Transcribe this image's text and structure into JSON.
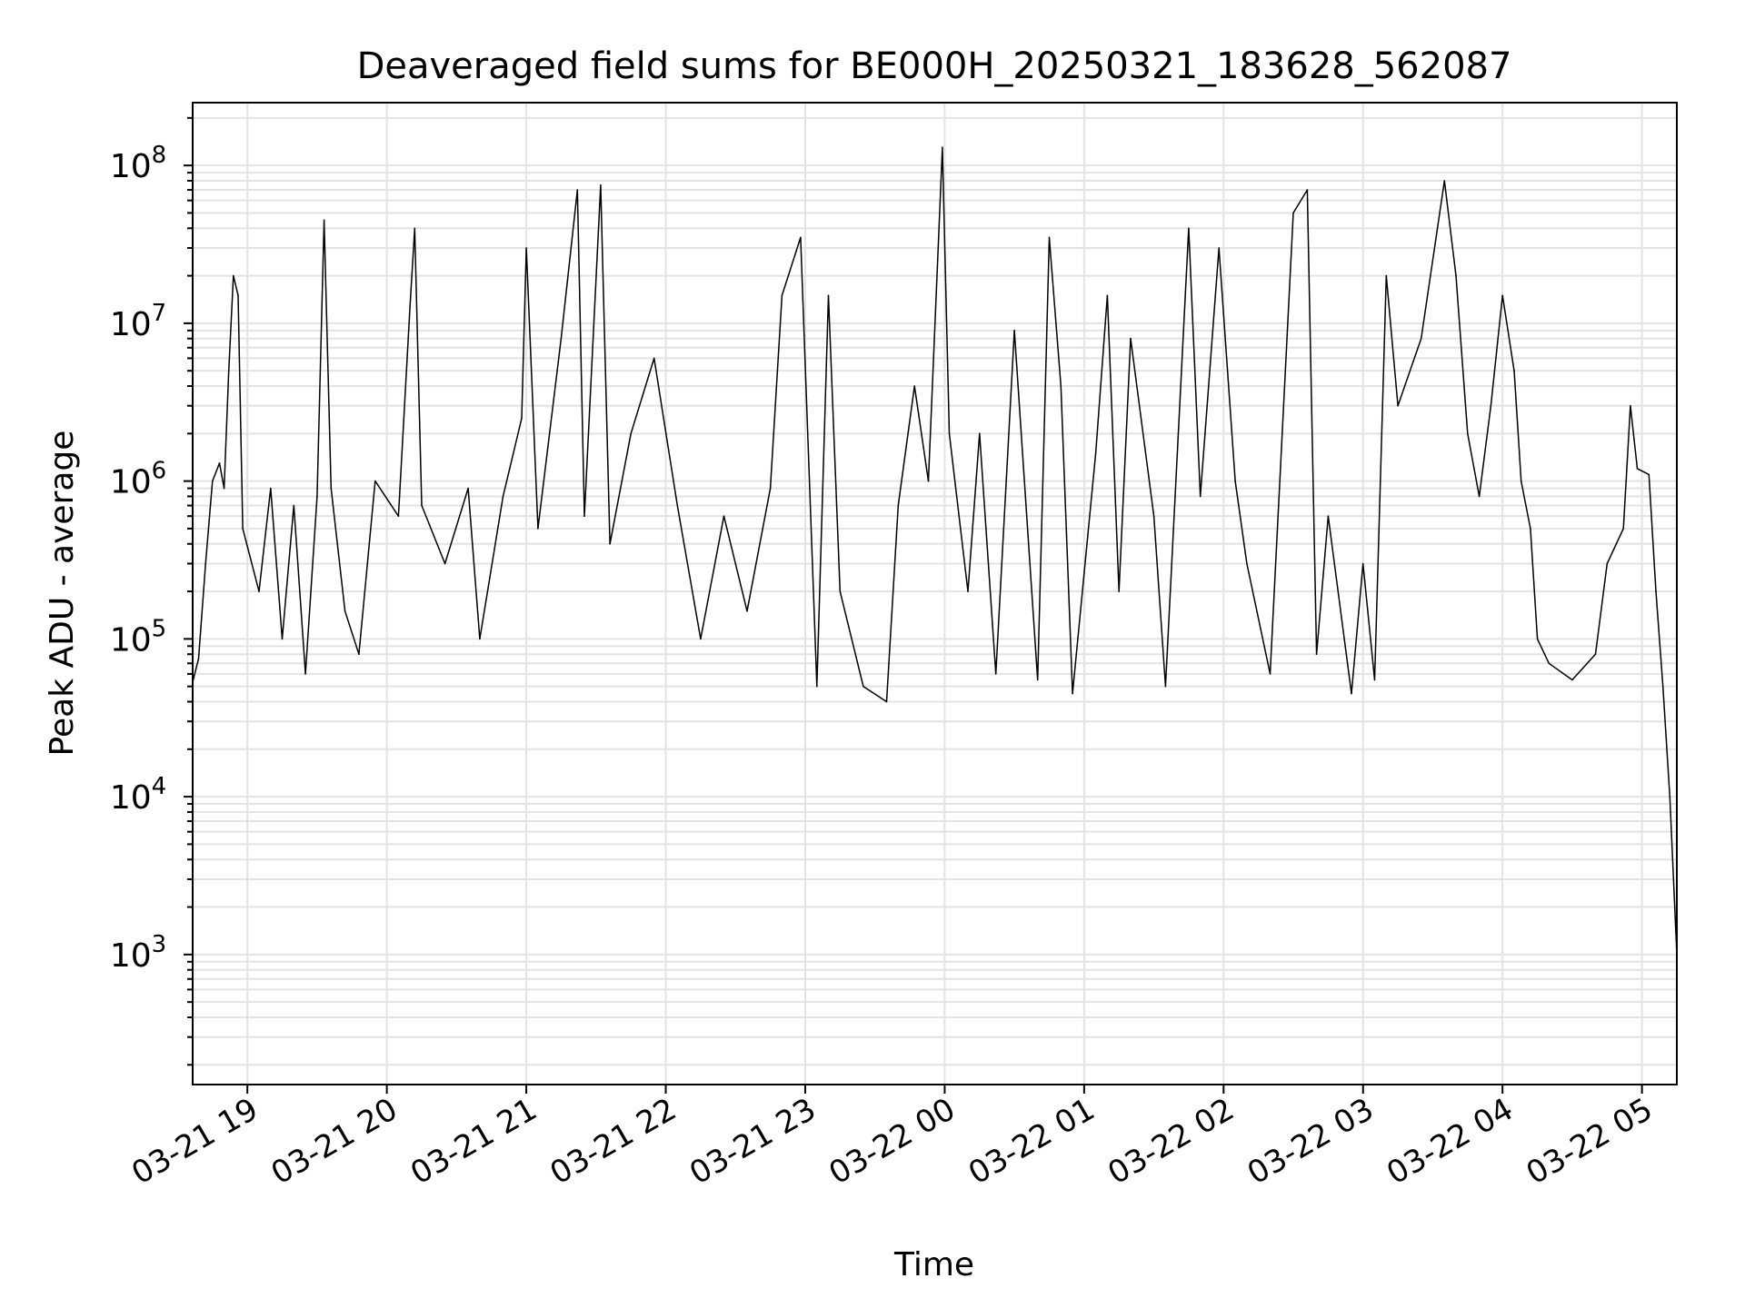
{
  "chart_data": {
    "type": "line",
    "title": "Deaveraged field sums for BE000H_20250321_183628_562087",
    "xlabel": "Time",
    "ylabel": "Peak ADU - average",
    "x_range": [
      "2025-03-21 18:36:28",
      "2025-03-22 05:15:00"
    ],
    "x_ticks": [
      "03-21 19",
      "03-21 20",
      "03-21 21",
      "03-21 22",
      "03-21 23",
      "03-22 00",
      "03-22 01",
      "03-22 02",
      "03-22 03",
      "03-22 04",
      "03-22 05"
    ],
    "y_scale": "log",
    "ylim": [
      150,
      250000000
    ],
    "y_ticks": [
      {
        "base": "10",
        "exp": "3",
        "value": 1000
      },
      {
        "base": "10",
        "exp": "4",
        "value": 10000
      },
      {
        "base": "10",
        "exp": "5",
        "value": 100000
      },
      {
        "base": "10",
        "exp": "6",
        "value": 1000000
      },
      {
        "base": "10",
        "exp": "7",
        "value": 10000000
      },
      {
        "base": "10",
        "exp": "8",
        "value": 100000000
      }
    ],
    "grid": true,
    "line_color": "#000000",
    "series": [
      {
        "points": [
          [
            "2025-03-21 18:36",
            50000
          ],
          [
            "2025-03-21 18:39",
            75000
          ],
          [
            "2025-03-21 18:42",
            300000
          ],
          [
            "2025-03-21 18:45",
            1000000
          ],
          [
            "2025-03-21 18:48",
            1300000
          ],
          [
            "2025-03-21 18:50",
            900000
          ],
          [
            "2025-03-21 18:52",
            5000000
          ],
          [
            "2025-03-21 18:54",
            20000000
          ],
          [
            "2025-03-21 18:56",
            15000000
          ],
          [
            "2025-03-21 18:58",
            500000
          ],
          [
            "2025-03-21 19:05",
            200000
          ],
          [
            "2025-03-21 19:10",
            900000
          ],
          [
            "2025-03-21 19:15",
            100000
          ],
          [
            "2025-03-21 19:20",
            700000
          ],
          [
            "2025-03-21 19:25",
            60000
          ],
          [
            "2025-03-21 19:30",
            800000
          ],
          [
            "2025-03-21 19:33",
            45000000
          ],
          [
            "2025-03-21 19:36",
            900000
          ],
          [
            "2025-03-21 19:42",
            150000
          ],
          [
            "2025-03-21 19:48",
            80000
          ],
          [
            "2025-03-21 19:55",
            1000000
          ],
          [
            "2025-03-21 20:05",
            600000
          ],
          [
            "2025-03-21 20:10",
            13000000
          ],
          [
            "2025-03-21 20:12",
            40000000
          ],
          [
            "2025-03-21 20:15",
            700000
          ],
          [
            "2025-03-21 20:25",
            300000
          ],
          [
            "2025-03-21 20:35",
            900000
          ],
          [
            "2025-03-21 20:40",
            100000
          ],
          [
            "2025-03-21 20:50",
            800000
          ],
          [
            "2025-03-21 20:58",
            2500000
          ],
          [
            "2025-03-21 21:00",
            30000000
          ],
          [
            "2025-03-21 21:05",
            500000
          ],
          [
            "2025-03-21 21:15",
            8000000
          ],
          [
            "2025-03-21 21:22",
            70000000
          ],
          [
            "2025-03-21 21:25",
            600000
          ],
          [
            "2025-03-21 21:32",
            75000000
          ],
          [
            "2025-03-21 21:36",
            400000
          ],
          [
            "2025-03-21 21:45",
            2000000
          ],
          [
            "2025-03-21 21:55",
            6000000
          ],
          [
            "2025-03-21 22:05",
            700000
          ],
          [
            "2025-03-21 22:15",
            100000
          ],
          [
            "2025-03-21 22:25",
            600000
          ],
          [
            "2025-03-21 22:35",
            150000
          ],
          [
            "2025-03-21 22:45",
            900000
          ],
          [
            "2025-03-21 22:50",
            15000000
          ],
          [
            "2025-03-21 22:58",
            35000000
          ],
          [
            "2025-03-21 23:05",
            50000
          ],
          [
            "2025-03-21 23:10",
            15000000
          ],
          [
            "2025-03-21 23:15",
            200000
          ],
          [
            "2025-03-21 23:25",
            50000
          ],
          [
            "2025-03-21 23:35",
            40000
          ],
          [
            "2025-03-21 23:40",
            700000
          ],
          [
            "2025-03-21 23:47",
            4000000
          ],
          [
            "2025-03-21 23:53",
            1000000
          ],
          [
            "2025-03-21 23:59",
            130000000
          ],
          [
            "2025-03-22 00:02",
            2000000
          ],
          [
            "2025-03-22 00:10",
            200000
          ],
          [
            "2025-03-22 00:15",
            2000000
          ],
          [
            "2025-03-22 00:22",
            60000
          ],
          [
            "2025-03-22 00:30",
            9000000
          ],
          [
            "2025-03-22 00:40",
            55000
          ],
          [
            "2025-03-22 00:45",
            35000000
          ],
          [
            "2025-03-22 00:50",
            4000000
          ],
          [
            "2025-03-22 00:55",
            45000
          ],
          [
            "2025-03-22 01:05",
            1500000
          ],
          [
            "2025-03-22 01:10",
            15000000
          ],
          [
            "2025-03-22 01:15",
            200000
          ],
          [
            "2025-03-22 01:20",
            8000000
          ],
          [
            "2025-03-22 01:30",
            600000
          ],
          [
            "2025-03-22 01:35",
            50000
          ],
          [
            "2025-03-22 01:45",
            40000000
          ],
          [
            "2025-03-22 01:50",
            800000
          ],
          [
            "2025-03-22 01:58",
            30000000
          ],
          [
            "2025-03-22 02:05",
            1000000
          ],
          [
            "2025-03-22 02:10",
            300000
          ],
          [
            "2025-03-22 02:20",
            60000
          ],
          [
            "2025-03-22 02:30",
            50000000
          ],
          [
            "2025-03-22 02:36",
            70000000
          ],
          [
            "2025-03-22 02:40",
            80000
          ],
          [
            "2025-03-22 02:45",
            600000
          ],
          [
            "2025-03-22 02:55",
            45000
          ],
          [
            "2025-03-22 03:00",
            300000
          ],
          [
            "2025-03-22 03:05",
            55000
          ],
          [
            "2025-03-22 03:10",
            20000000
          ],
          [
            "2025-03-22 03:15",
            3000000
          ],
          [
            "2025-03-22 03:25",
            8000000
          ],
          [
            "2025-03-22 03:32",
            40000000
          ],
          [
            "2025-03-22 03:35",
            80000000
          ],
          [
            "2025-03-22 03:40",
            20000000
          ],
          [
            "2025-03-22 03:45",
            2000000
          ],
          [
            "2025-03-22 03:50",
            800000
          ],
          [
            "2025-03-22 03:55",
            3000000
          ],
          [
            "2025-03-22 04:00",
            15000000
          ],
          [
            "2025-03-22 04:05",
            5000000
          ],
          [
            "2025-03-22 04:08",
            1000000
          ],
          [
            "2025-03-22 04:12",
            500000
          ],
          [
            "2025-03-22 04:15",
            100000
          ],
          [
            "2025-03-22 04:20",
            70000
          ],
          [
            "2025-03-22 04:30",
            55000
          ],
          [
            "2025-03-22 04:40",
            80000
          ],
          [
            "2025-03-22 04:45",
            300000
          ],
          [
            "2025-03-22 04:52",
            500000
          ],
          [
            "2025-03-22 04:55",
            3000000
          ],
          [
            "2025-03-22 04:58",
            1200000
          ],
          [
            "2025-03-22 05:03",
            1100000
          ],
          [
            "2025-03-22 05:06",
            200000
          ],
          [
            "2025-03-22 05:09",
            50000
          ],
          [
            "2025-03-22 05:12",
            10000
          ],
          [
            "2025-03-22 05:15",
            1000
          ]
        ]
      }
    ]
  }
}
